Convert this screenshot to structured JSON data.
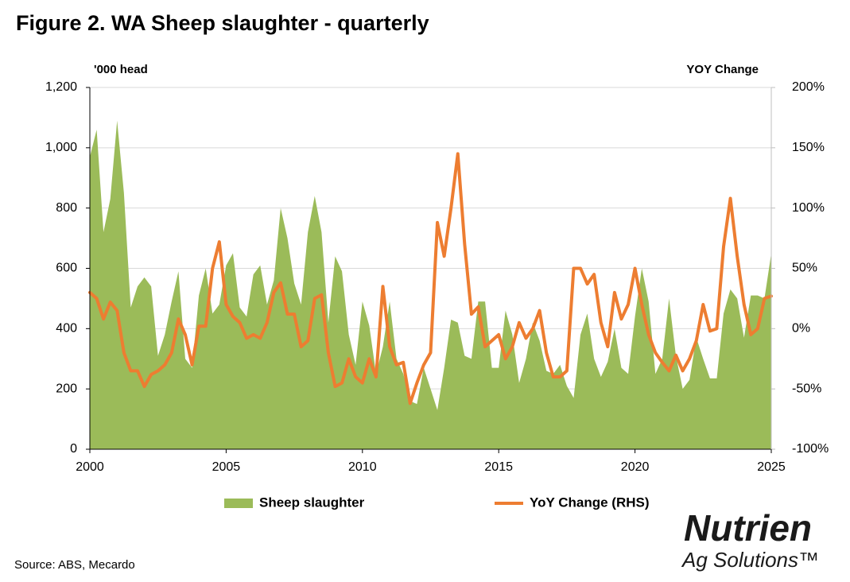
{
  "chart_data": {
    "type": "area_line",
    "title": "Figure 2. WA Sheep slaughter - quarterly",
    "y_axis_label": "'000 head",
    "y2_axis_label": "YOY Change",
    "source": "Source: ABS, Mecardo",
    "logo": {
      "name": "Nutrien",
      "tagline": "Ag Solutions™"
    },
    "legend": "bottom",
    "grid": true,
    "xlim": [
      2000,
      2025
    ],
    "xticks": [
      2000,
      2005,
      2010,
      2015,
      2020,
      2025
    ],
    "ylim": [
      0,
      1200
    ],
    "yticks": [
      0,
      200,
      400,
      600,
      800,
      {
        "value": 1000,
        "label": "1,000"
      },
      {
        "value": 1200,
        "label": "1,200"
      }
    ],
    "y2lim": [
      -100,
      200
    ],
    "y2ticks": [
      {
        "value": -100,
        "label": "-100%"
      },
      {
        "value": -50,
        "label": "-50%"
      },
      {
        "value": 0,
        "label": "0%"
      },
      {
        "value": 50,
        "label": "50%"
      },
      {
        "value": 100,
        "label": "100%"
      },
      {
        "value": 150,
        "label": "150%"
      },
      {
        "value": 200,
        "label": "200%"
      }
    ],
    "x": [
      2000,
      2000.25,
      2000.5,
      2000.75,
      2001,
      2001.25,
      2001.5,
      2001.75,
      2002,
      2002.25,
      2002.5,
      2002.75,
      2003,
      2003.25,
      2003.5,
      2003.75,
      2004,
      2004.25,
      2004.5,
      2004.75,
      2005,
      2005.25,
      2005.5,
      2005.75,
      2006,
      2006.25,
      2006.5,
      2006.75,
      2007,
      2007.25,
      2007.5,
      2007.75,
      2008,
      2008.25,
      2008.5,
      2008.75,
      2009,
      2009.25,
      2009.5,
      2009.75,
      2010,
      2010.25,
      2010.5,
      2010.75,
      2011,
      2011.25,
      2011.5,
      2011.75,
      2012,
      2012.25,
      2012.5,
      2012.75,
      2013,
      2013.25,
      2013.5,
      2013.75,
      2014,
      2014.25,
      2014.5,
      2014.75,
      2015,
      2015.25,
      2015.5,
      2015.75,
      2016,
      2016.25,
      2016.5,
      2016.75,
      2017,
      2017.25,
      2017.5,
      2017.75,
      2018,
      2018.25,
      2018.5,
      2018.75,
      2019,
      2019.25,
      2019.5,
      2019.75,
      2020,
      2020.25,
      2020.5,
      2020.75,
      2021,
      2021.25,
      2021.5,
      2021.75,
      2022,
      2022.25,
      2022.5,
      2022.75,
      2023,
      2023.25,
      2023.5,
      2023.75,
      2024,
      2024.25,
      2024.5,
      2024.75,
      2025
    ],
    "series": [
      {
        "name": "Sheep slaughter",
        "kind": "area",
        "color": "#9bbb59",
        "values": [
          970,
          1060,
          720,
          830,
          1090,
          850,
          470,
          540,
          570,
          540,
          310,
          380,
          490,
          590,
          300,
          270,
          510,
          600,
          450,
          480,
          610,
          650,
          470,
          440,
          580,
          610,
          480,
          560,
          800,
          700,
          550,
          480,
          720,
          840,
          720,
          420,
          640,
          590,
          380,
          280,
          490,
          410,
          250,
          340,
          490,
          300,
          250,
          160,
          150,
          270,
          200,
          130,
          270,
          430,
          420,
          310,
          300,
          490,
          490,
          270,
          270,
          460,
          380,
          220,
          300,
          420,
          360,
          260,
          250,
          280,
          210,
          170,
          380,
          450,
          300,
          240,
          290,
          400,
          270,
          250,
          440,
          600,
          490,
          250,
          300,
          500,
          310,
          200,
          230,
          370,
          300,
          235,
          235,
          450,
          530,
          500,
          370,
          510,
          510,
          500,
          650
        ]
      },
      {
        "name": "YoY Change (RHS)",
        "kind": "line",
        "axis": "y2",
        "color": "#ed7d31",
        "values": [
          30,
          25,
          8,
          22,
          15,
          -20,
          -35,
          -35,
          -48,
          -38,
          -35,
          -30,
          -20,
          8,
          -5,
          -30,
          2,
          2,
          50,
          72,
          20,
          10,
          5,
          -8,
          -5,
          -8,
          5,
          30,
          38,
          12,
          12,
          -15,
          -10,
          25,
          28,
          -20,
          -48,
          -45,
          -25,
          -40,
          -45,
          -25,
          -40,
          35,
          -15,
          -30,
          -28,
          -62,
          -45,
          -30,
          -20,
          88,
          60,
          100,
          145,
          70,
          12,
          18,
          -15,
          -10,
          -5,
          -25,
          -15,
          5,
          -8,
          0,
          15,
          -20,
          -40,
          -40,
          -35,
          50,
          50,
          37,
          45,
          5,
          -15,
          30,
          8,
          20,
          50,
          20,
          -5,
          -20,
          -28,
          -35,
          -22,
          -35,
          -25,
          -10,
          20,
          -2,
          0,
          68,
          108,
          60,
          20,
          -5,
          0,
          25,
          27
        ]
      }
    ]
  }
}
